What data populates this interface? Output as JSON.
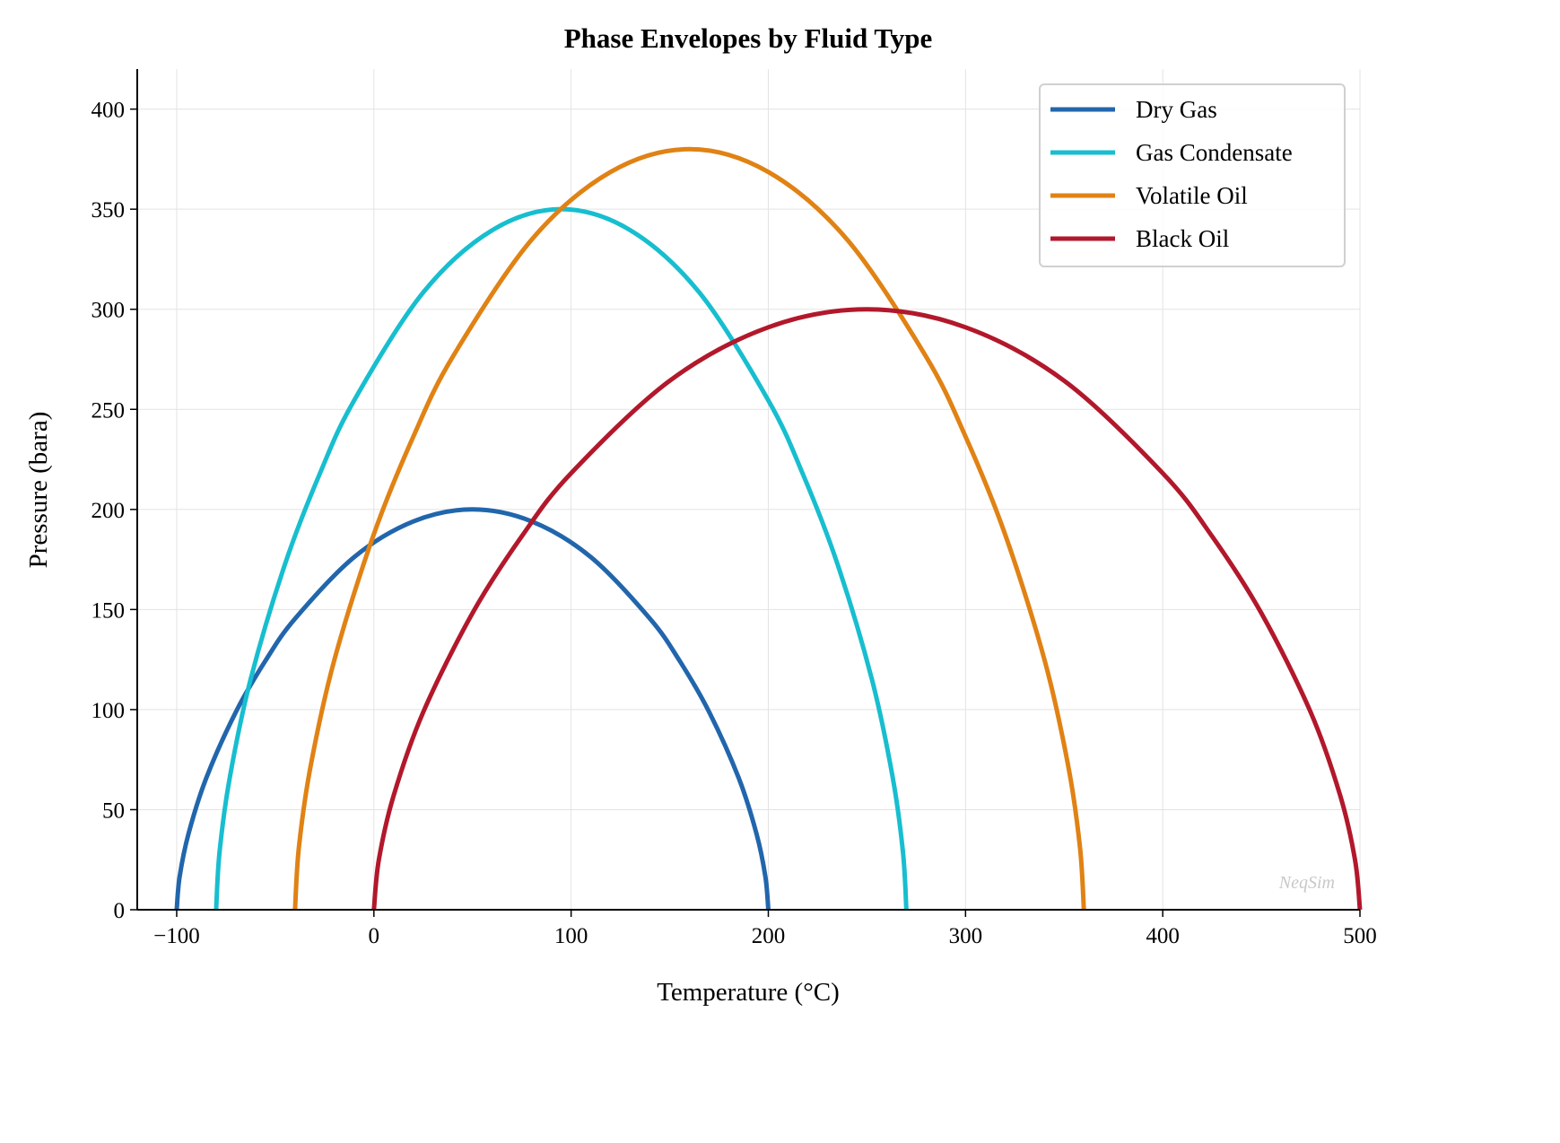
{
  "chart_data": {
    "type": "line",
    "title": "Phase Envelopes by Fluid Type",
    "xlabel": "Temperature (°C)",
    "ylabel": "Pressure (bara)",
    "xlim": [
      -120,
      500
    ],
    "ylim": [
      0,
      420
    ],
    "xticks": [
      -100,
      0,
      100,
      200,
      300,
      400,
      500
    ],
    "xtick_labels": [
      "−100",
      "0",
      "100",
      "200",
      "300",
      "400",
      "500"
    ],
    "yticks": [
      0,
      50,
      100,
      150,
      200,
      250,
      300,
      350,
      400
    ],
    "grid": true,
    "legend_placement": "top-right",
    "watermark": "NeqSim",
    "series": [
      {
        "name": "Dry Gas",
        "color": "#2166ac",
        "x": [
          -100,
          -98.5,
          -94,
          -85,
          -70,
          -55,
          -40,
          -10,
          20,
          50,
          80,
          110,
          140,
          155,
          170,
          185,
          194,
          198.5,
          200
        ],
        "y": [
          0,
          16.6,
          38,
          65.8,
          98.8,
          124.4,
          145.4,
          176.2,
          194,
          200,
          194,
          176.2,
          145.4,
          124.4,
          98.8,
          65.8,
          38,
          16.6,
          0
        ]
      },
      {
        "name": "Gas Condensate",
        "color": "#17becf",
        "x": [
          -80,
          -78.25,
          -73,
          -62.5,
          -45,
          -27.5,
          -10,
          25,
          60,
          95,
          130,
          165,
          200,
          217.5,
          235,
          252.5,
          263,
          268.25,
          270
        ],
        "y": [
          0,
          29,
          66.5,
          115.2,
          172.9,
          217.7,
          254.5,
          308.4,
          339.5,
          350,
          339.5,
          308.4,
          254.5,
          217.7,
          172.9,
          115.2,
          66.5,
          29,
          0
        ]
      },
      {
        "name": "Volatile Oil",
        "color": "#e08214",
        "x": [
          -40,
          -38,
          -32,
          -20,
          0,
          20,
          40,
          80,
          120,
          160,
          200,
          240,
          280,
          300,
          320,
          340,
          352,
          358,
          360
        ],
        "y": [
          0,
          31.5,
          72.2,
          125,
          187.7,
          236.4,
          276.3,
          334.8,
          368.6,
          380,
          368.6,
          334.8,
          276.3,
          236.4,
          187.7,
          125,
          72.2,
          31.5,
          0
        ]
      },
      {
        "name": "Black Oil",
        "color": "#b2182b",
        "x": [
          0,
          2.5,
          10,
          25,
          50,
          75,
          100,
          150,
          200,
          250,
          300,
          350,
          400,
          425,
          450,
          475,
          490,
          497.5,
          500
        ],
        "y": [
          0,
          24.9,
          57,
          98.7,
          148.2,
          186.6,
          218.1,
          264.3,
          291,
          300,
          291,
          264.3,
          218.1,
          186.6,
          148.2,
          98.7,
          57,
          24.9,
          0
        ]
      }
    ]
  }
}
